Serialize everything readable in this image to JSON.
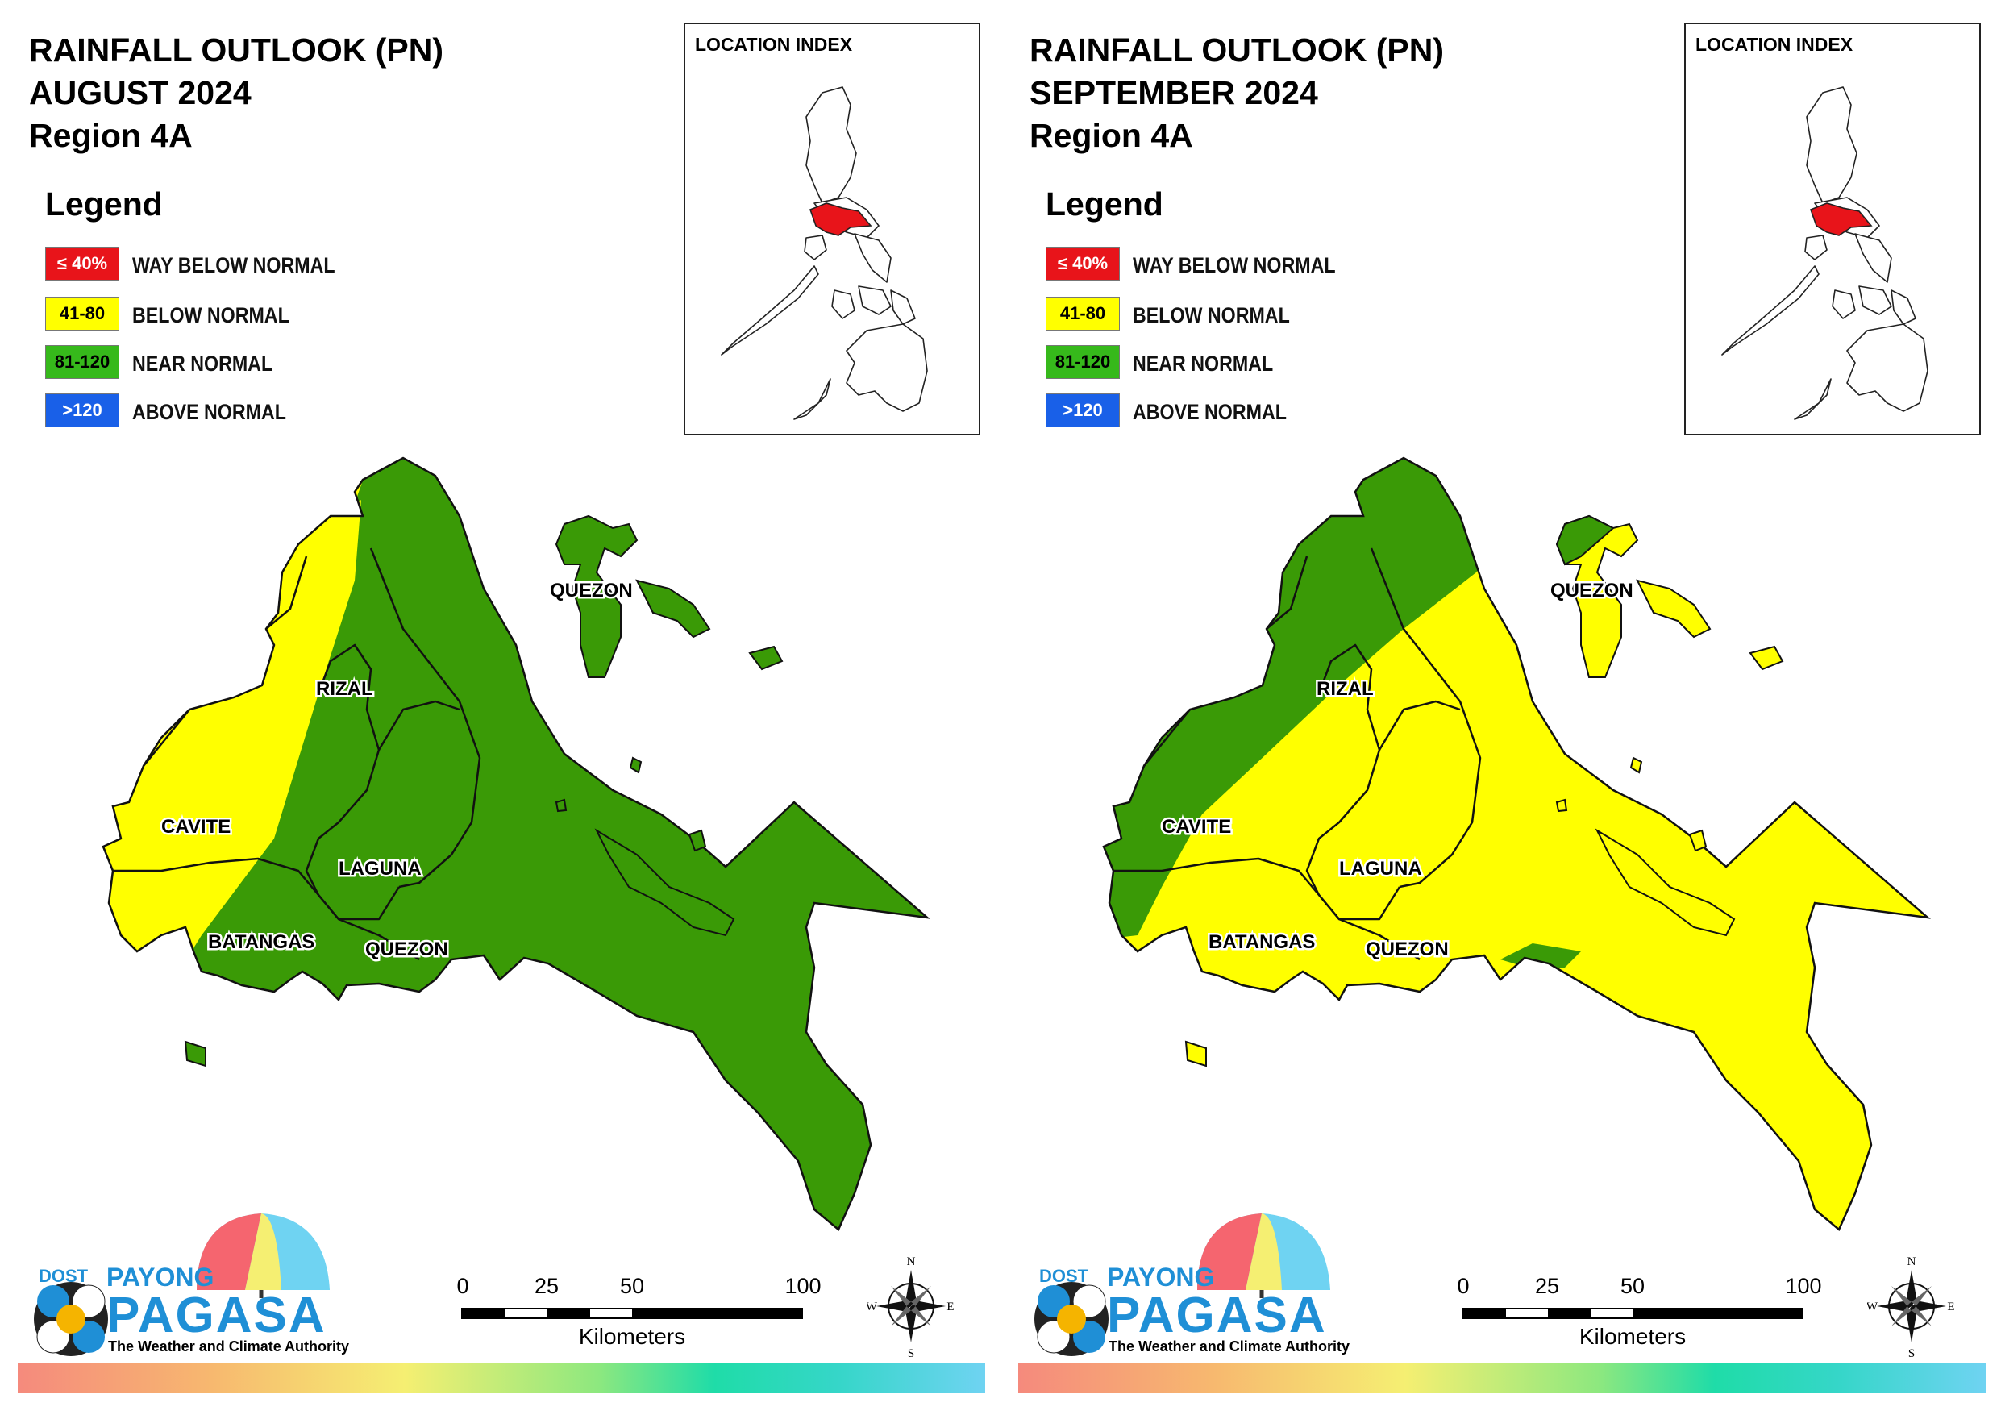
{
  "panels": [
    {
      "title_line1": "RAINFALL OUTLOOK (PN)",
      "title_line2": "AUGUST 2024",
      "title_line3": "Region 4A",
      "legend_title": "Legend",
      "legend": [
        {
          "code": "≤ 40%",
          "label": "WAY BELOW NORMAL",
          "color": "#e8141a",
          "text_color": "#ffffff"
        },
        {
          "code": "41-80",
          "label": "BELOW NORMAL",
          "color": "#ffff00",
          "text_color": "#000000"
        },
        {
          "code": "81-120",
          "label": "NEAR NORMAL",
          "color": "#36b91b",
          "text_color": "#000000"
        },
        {
          "code": ">120",
          "label": "ABOVE NORMAL",
          "color": "#1960e8",
          "text_color": "#ffffff"
        }
      ],
      "inset_title": "LOCATION INDEX",
      "provinces": {
        "rizal": "RIZAL",
        "cavite": "CAVITE",
        "laguna": "LAGUNA",
        "batangas": "BATANGAS",
        "quezon_south": "QUEZON",
        "quezon_north": "QUEZON"
      },
      "scale": {
        "ticks": [
          "0",
          "25",
          "50",
          "100"
        ],
        "unit": "Kilometers"
      },
      "compass": {
        "n": "N",
        "s": "S",
        "e": "E",
        "w": "W"
      },
      "logo": {
        "agency": "DOST",
        "line1": "PAYONG",
        "line2": "PAGASA",
        "tagline": "The Weather and Climate Authority"
      },
      "region_fill": {
        "rizal": "mixed-yellow-green",
        "cavite": "#ffff00",
        "laguna": "#36b91b",
        "batangas": "mixed-yellow-green",
        "quezon": "#36b91b"
      }
    },
    {
      "title_line1": "RAINFALL OUTLOOK (PN)",
      "title_line2": "SEPTEMBER 2024",
      "title_line3": "Region 4A",
      "legend_title": "Legend",
      "legend": [
        {
          "code": "≤ 40%",
          "label": "WAY BELOW NORMAL",
          "color": "#e8141a",
          "text_color": "#ffffff"
        },
        {
          "code": "41-80",
          "label": "BELOW NORMAL",
          "color": "#ffff00",
          "text_color": "#000000"
        },
        {
          "code": "81-120",
          "label": "NEAR NORMAL",
          "color": "#36b91b",
          "text_color": "#000000"
        },
        {
          "code": ">120",
          "label": "ABOVE NORMAL",
          "color": "#1960e8",
          "text_color": "#ffffff"
        }
      ],
      "inset_title": "LOCATION INDEX",
      "provinces": {
        "rizal": "RIZAL",
        "cavite": "CAVITE",
        "laguna": "LAGUNA",
        "batangas": "BATANGAS",
        "quezon_south": "QUEZON",
        "quezon_north": "QUEZON"
      },
      "scale": {
        "ticks": [
          "0",
          "25",
          "50",
          "100"
        ],
        "unit": "Kilometers"
      },
      "compass": {
        "n": "N",
        "s": "S",
        "e": "E",
        "w": "W"
      },
      "logo": {
        "agency": "DOST",
        "line1": "PAYONG",
        "line2": "PAGASA",
        "tagline": "The Weather and Climate Authority"
      },
      "region_fill": {
        "rizal": "#36b91b",
        "cavite": "mixed-green-yellow",
        "laguna": "#ffff00",
        "batangas": "#ffff00",
        "quezon": "mostly-#ffff00"
      }
    }
  ],
  "colors": {
    "green": "#3a9a06",
    "yellow": "#ffff00",
    "boundary": "#111111",
    "highlight": "#e8141a"
  }
}
